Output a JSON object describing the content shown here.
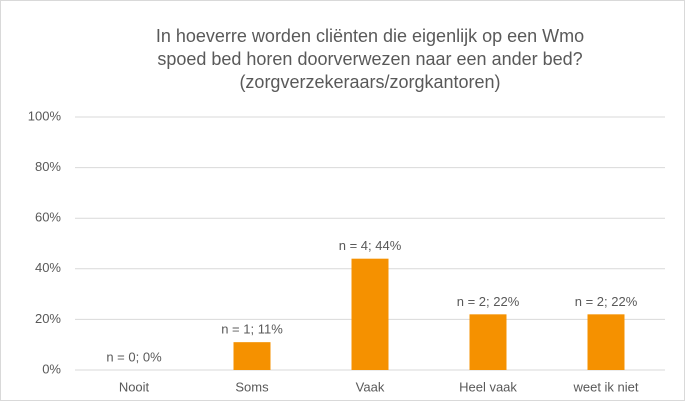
{
  "chart_data": {
    "type": "bar",
    "title": [
      "In hoeverre worden cliënten die eigenlijk op een Wmo",
      "spoed bed horen doorverwezen naar een ander bed?",
      "(zorgverzekeraars/zorgkantoren)"
    ],
    "categories": [
      "Nooit",
      "Soms",
      "Vaak",
      "Heel vaak",
      "weet ik niet"
    ],
    "values": [
      0,
      11,
      44,
      22,
      22
    ],
    "value_labels": [
      "n = 0; 0%",
      "n = 1; 11%",
      "n = 4; 44%",
      "n = 2; 22%",
      "n = 2; 22%"
    ],
    "color": "#f59100",
    "ylim": [
      0,
      100
    ],
    "yticks": [
      {
        "value": 0,
        "label": "0%"
      },
      {
        "value": 20,
        "label": "20%"
      },
      {
        "value": 40,
        "label": "40%"
      },
      {
        "value": 60,
        "label": "60%"
      },
      {
        "value": 80,
        "label": "80%"
      },
      {
        "value": 100,
        "label": "100%"
      }
    ],
    "grid": true
  }
}
